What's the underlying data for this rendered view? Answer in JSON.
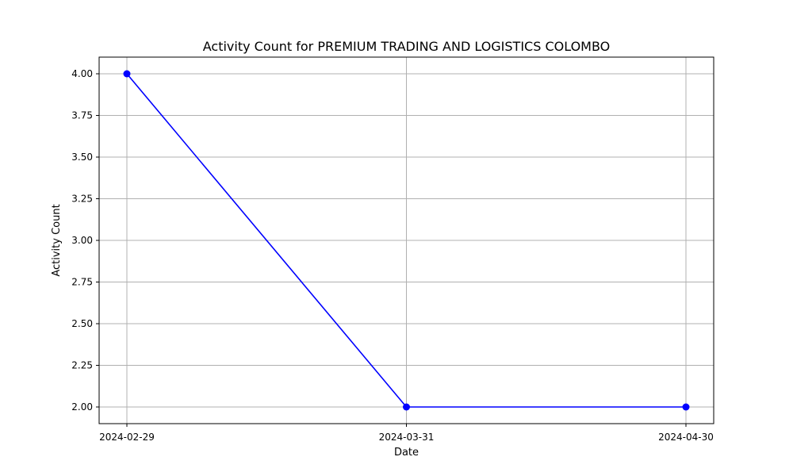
{
  "chart_data": {
    "type": "line",
    "title": "Activity Count for PREMIUM TRADING AND LOGISTICS COLOMBO",
    "xlabel": "Date",
    "ylabel": "Activity Count",
    "x": [
      "2024-02-29",
      "2024-03-31",
      "2024-04-30"
    ],
    "series": [
      {
        "values": [
          4.0,
          2.0,
          2.0
        ],
        "color": "#0000ff",
        "marker": "circle"
      }
    ],
    "ylim": [
      1.9,
      4.1
    ],
    "yticks": [
      "2.00",
      "2.25",
      "2.50",
      "2.75",
      "3.00",
      "3.25",
      "3.50",
      "3.75",
      "4.00"
    ],
    "xticks": [
      "2024-02-29",
      "2024-03-31",
      "2024-04-30"
    ],
    "grid": true
  }
}
